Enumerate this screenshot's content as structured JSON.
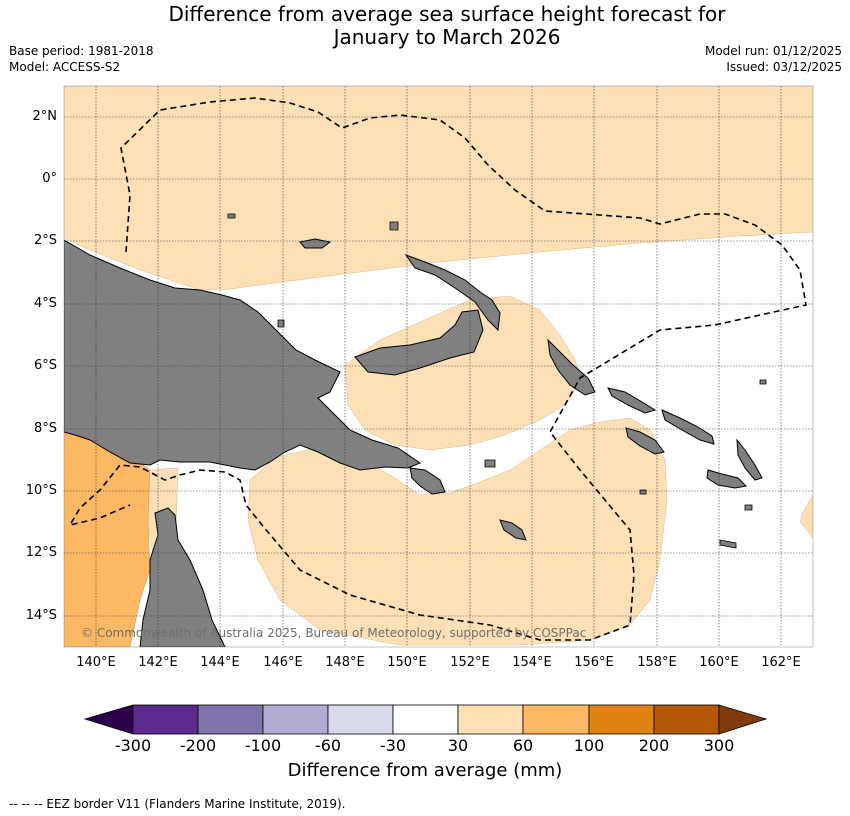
{
  "title_line1": "Difference from average sea surface height forecast for",
  "title_line2": "January to March 2026",
  "base_period": "Base period: 1981-2018",
  "model": "Model: ACCESS-S2",
  "model_run": "Model run: 01/12/2025",
  "issued": "Issued: 03/12/2025",
  "lat_labels": [
    "2°N",
    "0°",
    "2°S",
    "4°S",
    "6°S",
    "8°S",
    "10°S",
    "12°S",
    "14°S"
  ],
  "lon_labels": [
    "140°E",
    "142°E",
    "144°E",
    "146°E",
    "148°E",
    "150°E",
    "152°E",
    "154°E",
    "156°E",
    "158°E",
    "160°E",
    "162°E"
  ],
  "credit": "© Commonwealth of Australia 2025, Bureau of Meteorology, supported by COSPPac",
  "colorbar": {
    "ticks": [
      "-300",
      "-200",
      "-100",
      "-60",
      "-30",
      "30",
      "60",
      "100",
      "200",
      "300"
    ],
    "colors": [
      "#5b2a8c",
      "#8073ac",
      "#b2abd2",
      "#d8daeb",
      "#ffffff",
      "#fee0b6",
      "#fdb863",
      "#e08214",
      "#b35806"
    ],
    "under_color": "#2d004b",
    "over_color": "#7f3b08",
    "label": "Difference from average (mm)"
  },
  "footer": "--  --  -- EEZ border V11 (Flanders Marine Institute, 2019)."
}
